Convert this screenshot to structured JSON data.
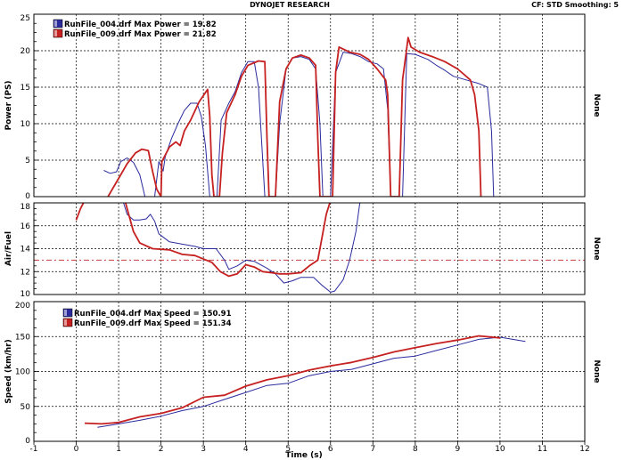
{
  "header": {
    "title": "DYNOJET RESEARCH",
    "settings": "CF: STD  Smoothing: 5"
  },
  "colors": {
    "run004": "#2b2b9e",
    "run009": "#c62020",
    "afr_reference": "#c24040"
  },
  "chart_data": [
    {
      "type": "line",
      "ylabel": "Power (PS)",
      "side_label": "None",
      "xlim": [
        -1,
        12
      ],
      "ylim": [
        0,
        25
      ],
      "y_ticks": [
        0,
        5,
        10,
        15,
        20,
        25
      ],
      "legend": [
        {
          "series": "run004",
          "text": "RunFile_004.drf Max Power = 19.82"
        },
        {
          "series": "run009",
          "text": "RunFile_009.drf Max Power = 21.82"
        }
      ],
      "series": [
        {
          "key": "run004",
          "points": [
            [
              0.65,
              3.6
            ],
            [
              0.8,
              3.2
            ],
            [
              0.95,
              3.4
            ],
            [
              1.05,
              4.8
            ],
            [
              1.2,
              5.3
            ],
            [
              1.35,
              4.7
            ],
            [
              1.5,
              3.0
            ],
            [
              1.62,
              0
            ],
            [
              1.85,
              0
            ],
            [
              1.95,
              4.8
            ],
            [
              2.05,
              3.5
            ],
            [
              2.1,
              5.5
            ],
            [
              2.25,
              8.0
            ],
            [
              2.4,
              10.0
            ],
            [
              2.55,
              11.8
            ],
            [
              2.7,
              12.8
            ],
            [
              2.85,
              12.8
            ],
            [
              2.95,
              11.0
            ],
            [
              3.05,
              7.0
            ],
            [
              3.15,
              0
            ],
            [
              3.32,
              0
            ],
            [
              3.42,
              10.5
            ],
            [
              3.6,
              12.8
            ],
            [
              3.75,
              14.4
            ],
            [
              3.9,
              17.0
            ],
            [
              4.05,
              18.5
            ],
            [
              4.2,
              18.5
            ],
            [
              4.3,
              15.0
            ],
            [
              4.4,
              5.0
            ],
            [
              4.45,
              0
            ],
            [
              4.7,
              0
            ],
            [
              4.8,
              10.0
            ],
            [
              4.95,
              17.5
            ],
            [
              5.1,
              19.0
            ],
            [
              5.3,
              19.2
            ],
            [
              5.5,
              18.8
            ],
            [
              5.65,
              17.5
            ],
            [
              5.75,
              10.0
            ],
            [
              5.82,
              0
            ],
            [
              6.0,
              0
            ],
            [
              6.12,
              17.0
            ],
            [
              6.3,
              19.8
            ],
            [
              6.5,
              19.6
            ],
            [
              6.7,
              19.2
            ],
            [
              6.9,
              18.5
            ],
            [
              7.1,
              18.2
            ],
            [
              7.25,
              17.5
            ],
            [
              7.35,
              12.0
            ],
            [
              7.42,
              0
            ],
            [
              7.7,
              0
            ],
            [
              7.8,
              19.6
            ],
            [
              8.0,
              19.5
            ],
            [
              8.3,
              18.8
            ],
            [
              8.5,
              18.0
            ],
            [
              8.7,
              17.3
            ],
            [
              8.9,
              16.5
            ],
            [
              9.2,
              16.0
            ],
            [
              9.5,
              15.5
            ],
            [
              9.7,
              15.0
            ],
            [
              9.8,
              9.0
            ],
            [
              9.85,
              0
            ]
          ]
        },
        {
          "key": "run009",
          "points": [
            [
              0.75,
              0
            ],
            [
              0.85,
              1.0
            ],
            [
              1.0,
              2.5
            ],
            [
              1.2,
              4.5
            ],
            [
              1.4,
              6.0
            ],
            [
              1.55,
              6.5
            ],
            [
              1.7,
              6.3
            ],
            [
              1.8,
              3.5
            ],
            [
              1.9,
              1.0
            ],
            [
              2.0,
              0
            ],
            [
              2.02,
              4.8
            ],
            [
              2.2,
              6.8
            ],
            [
              2.35,
              7.5
            ],
            [
              2.45,
              7.0
            ],
            [
              2.55,
              9.0
            ],
            [
              2.7,
              10.5
            ],
            [
              2.9,
              13.0
            ],
            [
              3.1,
              14.7
            ],
            [
              3.15,
              11.0
            ],
            [
              3.2,
              3.0
            ],
            [
              3.25,
              0
            ],
            [
              3.38,
              0
            ],
            [
              3.45,
              6.0
            ],
            [
              3.55,
              11.5
            ],
            [
              3.75,
              14.0
            ],
            [
              3.9,
              16.5
            ],
            [
              4.05,
              18.0
            ],
            [
              4.3,
              18.6
            ],
            [
              4.45,
              18.5
            ],
            [
              4.5,
              8.0
            ],
            [
              4.55,
              0
            ],
            [
              4.7,
              0
            ],
            [
              4.8,
              13.0
            ],
            [
              4.95,
              17.5
            ],
            [
              5.1,
              19.0
            ],
            [
              5.3,
              19.4
            ],
            [
              5.5,
              19.0
            ],
            [
              5.65,
              18.0
            ],
            [
              5.7,
              8.0
            ],
            [
              5.75,
              0
            ],
            [
              6.05,
              0
            ],
            [
              6.12,
              17.0
            ],
            [
              6.2,
              20.5
            ],
            [
              6.45,
              19.8
            ],
            [
              6.7,
              19.5
            ],
            [
              6.9,
              18.8
            ],
            [
              7.1,
              17.5
            ],
            [
              7.3,
              16.0
            ],
            [
              7.35,
              14.0
            ],
            [
              7.42,
              0
            ],
            [
              7.62,
              0
            ],
            [
              7.7,
              16.0
            ],
            [
              7.78,
              19.5
            ],
            [
              7.83,
              21.8
            ],
            [
              7.9,
              20.5
            ],
            [
              8.1,
              19.8
            ],
            [
              8.4,
              19.2
            ],
            [
              8.7,
              18.5
            ],
            [
              9.0,
              17.5
            ],
            [
              9.3,
              16.0
            ],
            [
              9.4,
              14.0
            ],
            [
              9.5,
              9.0
            ],
            [
              9.55,
              0
            ]
          ]
        }
      ]
    },
    {
      "type": "line",
      "ylabel": "Air/Fuel",
      "side_label": "None",
      "xlim": [
        -1,
        12
      ],
      "ylim": [
        10,
        18
      ],
      "y_ticks": [
        10,
        12,
        14,
        16,
        18
      ],
      "reference_line": 13.0,
      "series": [
        {
          "key": "run004",
          "points": [
            [
              1.1,
              18.2
            ],
            [
              1.2,
              17.0
            ],
            [
              1.35,
              16.5
            ],
            [
              1.5,
              16.5
            ],
            [
              1.65,
              16.6
            ],
            [
              1.75,
              17.0
            ],
            [
              1.85,
              16.4
            ],
            [
              1.95,
              15.3
            ],
            [
              2.2,
              14.6
            ],
            [
              2.5,
              14.4
            ],
            [
              2.8,
              14.2
            ],
            [
              3.0,
              14.0
            ],
            [
              3.3,
              14.0
            ],
            [
              3.5,
              13.0
            ],
            [
              3.6,
              12.2
            ],
            [
              3.8,
              12.5
            ],
            [
              4.0,
              13.0
            ],
            [
              4.2,
              12.9
            ],
            [
              4.5,
              12.3
            ],
            [
              4.7,
              11.8
            ],
            [
              4.9,
              11.0
            ],
            [
              5.1,
              11.2
            ],
            [
              5.3,
              11.5
            ],
            [
              5.6,
              11.5
            ],
            [
              5.8,
              10.8
            ],
            [
              6.0,
              10.2
            ],
            [
              6.1,
              10.3
            ],
            [
              6.3,
              11.3
            ],
            [
              6.45,
              13.0
            ],
            [
              6.6,
              15.5
            ],
            [
              6.7,
              18.2
            ]
          ]
        },
        {
          "key": "run009",
          "points": [
            [
              0.0,
              16.5
            ],
            [
              0.1,
              17.5
            ],
            [
              0.2,
              18.2
            ],
            [
              1.15,
              18.2
            ],
            [
              1.2,
              17.5
            ],
            [
              1.35,
              15.5
            ],
            [
              1.5,
              14.5
            ],
            [
              1.8,
              14.0
            ],
            [
              2.2,
              13.9
            ],
            [
              2.5,
              13.5
            ],
            [
              2.8,
              13.4
            ],
            [
              3.0,
              13.1
            ],
            [
              3.2,
              12.8
            ],
            [
              3.4,
              12.0
            ],
            [
              3.6,
              11.6
            ],
            [
              3.8,
              11.8
            ],
            [
              4.0,
              12.6
            ],
            [
              4.2,
              12.4
            ],
            [
              4.4,
              12.0
            ],
            [
              4.6,
              11.9
            ],
            [
              4.8,
              11.8
            ],
            [
              5.0,
              11.8
            ],
            [
              5.3,
              11.9
            ],
            [
              5.5,
              12.5
            ],
            [
              5.7,
              13.0
            ],
            [
              5.8,
              15.0
            ],
            [
              5.9,
              17.0
            ],
            [
              6.0,
              18.2
            ]
          ]
        }
      ]
    },
    {
      "type": "line",
      "xlabel": "Time (s)",
      "ylabel": "Speed (km/hr)",
      "side_label": "None",
      "xlim": [
        -1,
        12
      ],
      "ylim": [
        0,
        200
      ],
      "y_ticks": [
        0,
        50,
        100,
        150,
        200
      ],
      "x_ticks": [
        -1,
        0,
        1,
        2,
        3,
        4,
        5,
        6,
        7,
        8,
        9,
        10,
        11,
        12
      ],
      "legend": [
        {
          "series": "run004",
          "text": "RunFile_004.drf Max Speed = 150.91"
        },
        {
          "series": "run009",
          "text": "RunFile_009.drf Max Speed = 151.34"
        }
      ],
      "series": [
        {
          "key": "run004",
          "points": [
            [
              0.5,
              20
            ],
            [
              1.0,
              25
            ],
            [
              1.5,
              30
            ],
            [
              2.0,
              36
            ],
            [
              2.5,
              44
            ],
            [
              3.0,
              50
            ],
            [
              3.5,
              60
            ],
            [
              4.0,
              70
            ],
            [
              4.5,
              80
            ],
            [
              5.0,
              83
            ],
            [
              5.5,
              94
            ],
            [
              6.0,
              100
            ],
            [
              6.5,
              103
            ],
            [
              7.0,
              111
            ],
            [
              7.5,
              119
            ],
            [
              8.0,
              122
            ],
            [
              8.5,
              130
            ],
            [
              9.0,
              138
            ],
            [
              9.5,
              146
            ],
            [
              10.0,
              149
            ],
            [
              10.6,
              143
            ]
          ]
        },
        {
          "key": "run009",
          "points": [
            [
              0.2,
              26
            ],
            [
              0.6,
              25
            ],
            [
              1.0,
              27
            ],
            [
              1.5,
              35
            ],
            [
              2.0,
              40
            ],
            [
              2.5,
              48
            ],
            [
              3.0,
              63
            ],
            [
              3.5,
              66
            ],
            [
              4.0,
              79
            ],
            [
              4.5,
              88
            ],
            [
              5.0,
              94
            ],
            [
              5.5,
              102
            ],
            [
              6.0,
              108
            ],
            [
              6.5,
              113
            ],
            [
              7.0,
              120
            ],
            [
              7.5,
              128
            ],
            [
              8.0,
              134
            ],
            [
              8.5,
              140
            ],
            [
              9.0,
              145
            ],
            [
              9.5,
              151
            ],
            [
              10.0,
              148
            ]
          ]
        }
      ]
    }
  ]
}
